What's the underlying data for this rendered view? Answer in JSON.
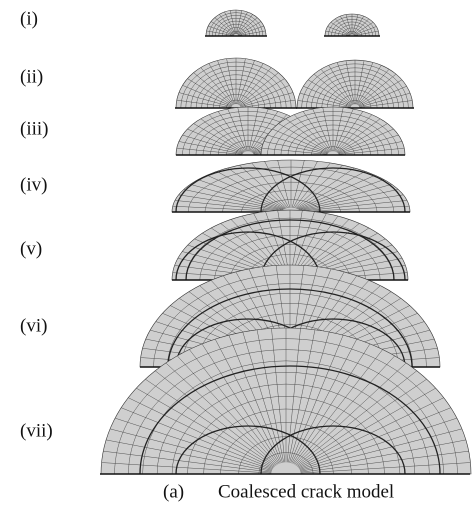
{
  "labels": [
    "(i)",
    "(ii)",
    "(iii)",
    "(iv)",
    "(v)",
    "(vi)",
    "(vii)"
  ],
  "caption": {
    "tag": "(a)",
    "text": "Coalesced crack model"
  }
}
